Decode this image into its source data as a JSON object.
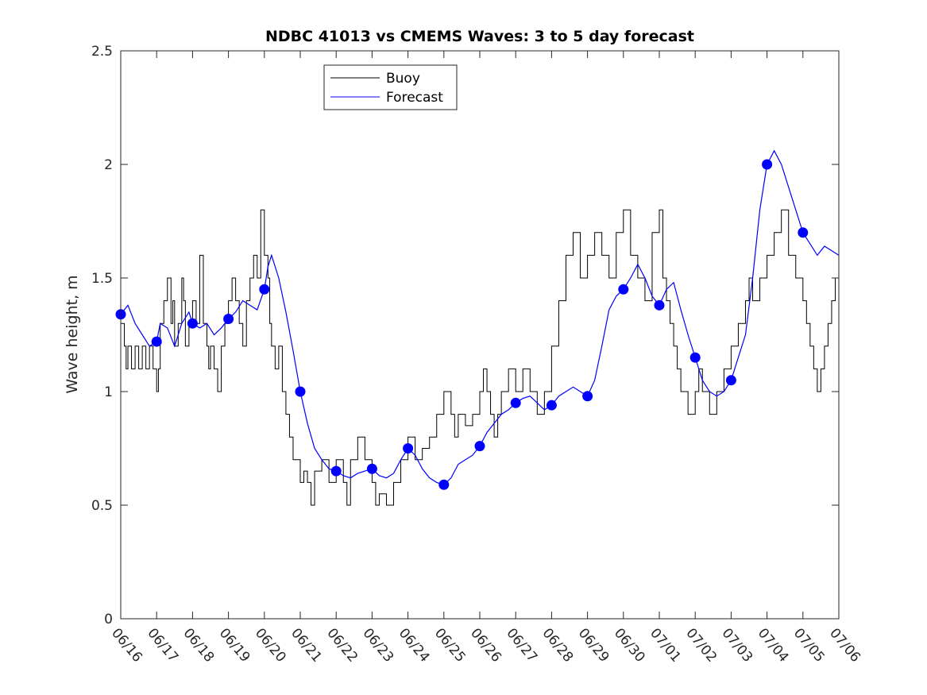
{
  "chart_data": {
    "type": "line",
    "title": "NDBC 41013 vs CMEMS Waves: 3 to 5 day forecast",
    "xlabel": "",
    "ylabel": "Wave height, m",
    "xlim": [
      0,
      20
    ],
    "ylim": [
      0,
      2.5
    ],
    "x_ticks": [
      "06/16",
      "06/17",
      "06/18",
      "06/19",
      "06/20",
      "06/21",
      "06/22",
      "06/23",
      "06/24",
      "06/25",
      "06/26",
      "06/27",
      "06/28",
      "06/29",
      "06/30",
      "07/01",
      "07/02",
      "07/03",
      "07/04",
      "07/05",
      "07/06"
    ],
    "y_ticks": [
      0,
      0.5,
      1,
      1.5,
      2,
      2.5
    ],
    "y_tick_labels": [
      "0",
      "0.5",
      "1",
      "1.5",
      "2",
      "2.5"
    ],
    "legend_placement": "top-center",
    "grid": false,
    "colors": {
      "buoy": "#000000",
      "forecast": "#0000ff"
    },
    "series": [
      {
        "name": "Buoy",
        "color": "#000000",
        "style": "step",
        "x": [
          0.0,
          0.1,
          0.15,
          0.2,
          0.3,
          0.4,
          0.5,
          0.6,
          0.7,
          0.8,
          0.9,
          1.0,
          1.05,
          1.1,
          1.2,
          1.3,
          1.4,
          1.45,
          1.5,
          1.6,
          1.7,
          1.75,
          1.8,
          1.9,
          2.0,
          2.1,
          2.2,
          2.3,
          2.4,
          2.45,
          2.5,
          2.6,
          2.7,
          2.8,
          2.9,
          3.0,
          3.1,
          3.2,
          3.3,
          3.4,
          3.5,
          3.6,
          3.7,
          3.8,
          3.9,
          4.0,
          4.1,
          4.15,
          4.2,
          4.3,
          4.4,
          4.5,
          4.6,
          4.7,
          4.8,
          4.9,
          5.0,
          5.1,
          5.2,
          5.3,
          5.4,
          5.6,
          5.8,
          6.0,
          6.2,
          6.3,
          6.4,
          6.6,
          6.8,
          7.0,
          7.1,
          7.2,
          7.4,
          7.6,
          7.8,
          8.0,
          8.2,
          8.4,
          8.6,
          8.8,
          9.0,
          9.2,
          9.3,
          9.4,
          9.6,
          9.8,
          10.0,
          10.1,
          10.2,
          10.3,
          10.4,
          10.5,
          10.6,
          10.8,
          11.0,
          11.2,
          11.4,
          11.6,
          11.8,
          12.0,
          12.2,
          12.4,
          12.6,
          12.8,
          13.0,
          13.2,
          13.4,
          13.6,
          13.8,
          14.0,
          14.2,
          14.4,
          14.6,
          14.8,
          15.0,
          15.1,
          15.2,
          15.3,
          15.4,
          15.5,
          15.6,
          15.8,
          16.0,
          16.1,
          16.2,
          16.4,
          16.6,
          16.8,
          17.0,
          17.2,
          17.4,
          17.5,
          17.6,
          17.8,
          18.0,
          18.2,
          18.4,
          18.6,
          18.8,
          19.0,
          19.1,
          19.2,
          19.3,
          19.4,
          19.5,
          19.6,
          19.7,
          19.8,
          19.9,
          20.0
        ],
        "y": [
          1.3,
          1.2,
          1.1,
          1.2,
          1.1,
          1.2,
          1.1,
          1.2,
          1.1,
          1.2,
          1.1,
          1.0,
          1.1,
          1.3,
          1.4,
          1.5,
          1.3,
          1.4,
          1.2,
          1.3,
          1.5,
          1.4,
          1.2,
          1.3,
          1.4,
          1.3,
          1.6,
          1.3,
          1.2,
          1.1,
          1.2,
          1.1,
          1.0,
          1.2,
          1.3,
          1.4,
          1.5,
          1.4,
          1.3,
          1.2,
          1.4,
          1.5,
          1.6,
          1.5,
          1.8,
          1.6,
          1.5,
          1.3,
          1.2,
          1.1,
          1.2,
          1.0,
          0.9,
          0.8,
          0.7,
          0.7,
          0.6,
          0.65,
          0.6,
          0.5,
          0.65,
          0.7,
          0.6,
          0.7,
          0.6,
          0.5,
          0.7,
          0.8,
          0.7,
          0.6,
          0.5,
          0.55,
          0.5,
          0.6,
          0.7,
          0.8,
          0.7,
          0.75,
          0.8,
          0.9,
          1.0,
          0.9,
          0.8,
          0.9,
          0.85,
          0.9,
          1.0,
          1.1,
          1.0,
          0.9,
          0.8,
          0.9,
          1.0,
          1.1,
          1.0,
          1.1,
          1.0,
          0.9,
          1.0,
          1.2,
          1.4,
          1.6,
          1.7,
          1.5,
          1.6,
          1.7,
          1.6,
          1.5,
          1.7,
          1.8,
          1.6,
          1.5,
          1.4,
          1.7,
          1.8,
          1.5,
          1.4,
          1.3,
          1.2,
          1.1,
          1.0,
          0.9,
          1.0,
          1.1,
          1.0,
          0.9,
          1.0,
          1.1,
          1.2,
          1.3,
          1.4,
          1.5,
          1.4,
          1.5,
          1.6,
          1.7,
          1.8,
          1.6,
          1.5,
          1.4,
          1.3,
          1.2,
          1.1,
          1.0,
          1.1,
          1.2,
          1.3,
          1.4,
          1.5,
          1.4
        ]
      },
      {
        "name": "Forecast",
        "color": "#0000ff",
        "style": "line",
        "x": [
          0.0,
          0.2,
          0.4,
          0.6,
          0.8,
          1.0,
          1.1,
          1.3,
          1.5,
          1.7,
          1.9,
          2.0,
          2.2,
          2.4,
          2.6,
          2.8,
          3.0,
          3.2,
          3.4,
          3.6,
          3.8,
          4.0,
          4.1,
          4.2,
          4.4,
          4.6,
          4.8,
          5.0,
          5.2,
          5.4,
          5.6,
          5.8,
          6.0,
          6.2,
          6.4,
          6.6,
          6.8,
          7.0,
          7.2,
          7.4,
          7.6,
          7.8,
          8.0,
          8.2,
          8.4,
          8.6,
          8.8,
          9.0,
          9.2,
          9.4,
          9.6,
          9.8,
          10.0,
          10.2,
          10.4,
          10.6,
          10.8,
          11.0,
          11.2,
          11.4,
          11.6,
          11.8,
          12.0,
          12.2,
          12.4,
          12.6,
          12.8,
          13.0,
          13.2,
          13.4,
          13.6,
          13.8,
          14.0,
          14.2,
          14.4,
          14.6,
          14.8,
          15.0,
          15.2,
          15.4,
          15.6,
          15.8,
          16.0,
          16.2,
          16.4,
          16.6,
          16.8,
          17.0,
          17.2,
          17.4,
          17.6,
          17.8,
          18.0,
          18.2,
          18.4,
          18.6,
          18.8,
          19.0,
          19.2,
          19.4,
          19.6,
          19.8,
          20.0
        ],
        "y": [
          1.34,
          1.38,
          1.3,
          1.25,
          1.2,
          1.22,
          1.3,
          1.28,
          1.2,
          1.3,
          1.35,
          1.3,
          1.28,
          1.3,
          1.25,
          1.28,
          1.32,
          1.35,
          1.4,
          1.38,
          1.36,
          1.45,
          1.55,
          1.6,
          1.5,
          1.35,
          1.18,
          1.0,
          0.86,
          0.75,
          0.7,
          0.66,
          0.65,
          0.63,
          0.62,
          0.64,
          0.65,
          0.66,
          0.63,
          0.62,
          0.64,
          0.7,
          0.75,
          0.72,
          0.66,
          0.62,
          0.6,
          0.59,
          0.62,
          0.68,
          0.7,
          0.72,
          0.76,
          0.82,
          0.86,
          0.9,
          0.92,
          0.95,
          0.97,
          0.98,
          0.95,
          0.92,
          0.94,
          0.98,
          1.0,
          1.02,
          1.0,
          0.98,
          1.05,
          1.2,
          1.36,
          1.42,
          1.45,
          1.5,
          1.56,
          1.5,
          1.42,
          1.38,
          1.45,
          1.48,
          1.36,
          1.25,
          1.15,
          1.05,
          1.0,
          0.98,
          1.0,
          1.05,
          1.15,
          1.25,
          1.5,
          1.8,
          2.0,
          2.06,
          2.0,
          1.9,
          1.8,
          1.7,
          1.65,
          1.6,
          1.64,
          1.62,
          1.6
        ]
      }
    ]
  }
}
